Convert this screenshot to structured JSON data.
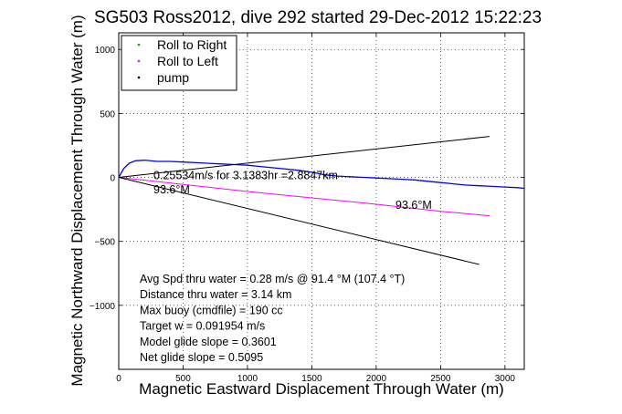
{
  "chart_data": {
    "type": "line",
    "title": "SG503 Ross2012, dive 292 started 29-Dec-2012 15:22:23",
    "xlabel": "Magnetic Eastward Displacement Through Water (m)",
    "ylabel": "Magnetic Northward Displacement Through Water (m)",
    "xlim": [
      0,
      3150
    ],
    "ylim": [
      -1500,
      1130
    ],
    "grid": true,
    "legend_position": "top-left",
    "xticks": [
      0,
      500,
      1000,
      1500,
      2000,
      2500,
      3000
    ],
    "xtick_labels": [
      "0",
      "500",
      "1000",
      "1500",
      "2000",
      "2500",
      "3000"
    ],
    "yticks": [
      -1000,
      -500,
      0,
      500,
      1000
    ],
    "ytick_labels": [
      "−1000",
      "−500",
      "0",
      "500",
      "1000"
    ],
    "legend": [
      {
        "label": "Roll to Right",
        "color": "#00aa00",
        "marker": "dot"
      },
      {
        "label": "Roll to Left",
        "color": "#ff00ff",
        "marker": "dot"
      },
      {
        "label": "pump",
        "color": "#000000",
        "marker": "dot"
      }
    ],
    "series": [
      {
        "color": "#0000ff",
        "x": [
          0,
          40,
          80,
          130,
          200,
          300,
          400,
          500,
          600,
          700,
          800,
          900,
          1000,
          1100,
          1200,
          1300,
          1400,
          1500,
          1600,
          1700,
          1800,
          1900,
          2000,
          2100,
          2200,
          2300,
          2400,
          2500,
          2600,
          2700,
          2800,
          2900,
          3000,
          3100,
          3150
        ],
        "y": [
          0,
          70,
          110,
          130,
          135,
          125,
          125,
          120,
          115,
          110,
          105,
          100,
          95,
          85,
          75,
          65,
          55,
          40,
          20,
          10,
          5,
          0,
          -5,
          -10,
          -15,
          -20,
          -30,
          -40,
          -50,
          -60,
          -65,
          -70,
          -75,
          -80,
          -85
        ]
      },
      {
        "color": "#ff00ff",
        "x": [
          0,
          500,
          1000,
          1500,
          2000,
          2500,
          2880
        ],
        "y": [
          0,
          -55,
          -110,
          -160,
          -210,
          -265,
          -300
        ]
      },
      {
        "color": "#000000",
        "x": [
          0,
          2880
        ],
        "y": [
          0,
          320
        ]
      },
      {
        "color": "#000000",
        "x": [
          0,
          2800
        ],
        "y": [
          0,
          -680
        ]
      }
    ],
    "annotations": [
      {
        "text": "0.25534m/s for 3.1383hr =2.8847km",
        "x": 270,
        "y": -15
      },
      {
        "text": "93.6°M",
        "x": 270,
        "y": -125
      },
      {
        "text": "93.6°M",
        "x": 2150,
        "y": -245
      }
    ],
    "stats": [
      "Avg Spd thru water =  0.28 m/s @  91.4   °M (107.4 °T)",
      "Distance thru water =  3.14 km",
      "Max buoy (cmdfile) = 190 cc",
      "Target w = 0.091954 m/s",
      "Model glide slope = 0.3601",
      "Net glide slope = 0.5095"
    ]
  }
}
